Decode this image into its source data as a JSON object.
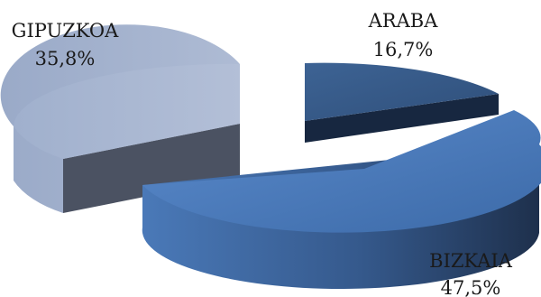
{
  "chart_data": {
    "type": "pie",
    "title": "",
    "categories": [
      "ARABA",
      "BIZKAIA",
      "GIPUZKOA"
    ],
    "values": [
      16.7,
      47.5,
      35.8
    ],
    "value_labels": [
      "16,7%",
      "47,5%",
      "35,8%"
    ],
    "colors": {
      "ARABA": "#3f6596",
      "BIZKAIA": "#4f7fc0",
      "GIPUZKOA": "#a7b5d1"
    },
    "style": "3D exploded pie",
    "legend": "none"
  }
}
